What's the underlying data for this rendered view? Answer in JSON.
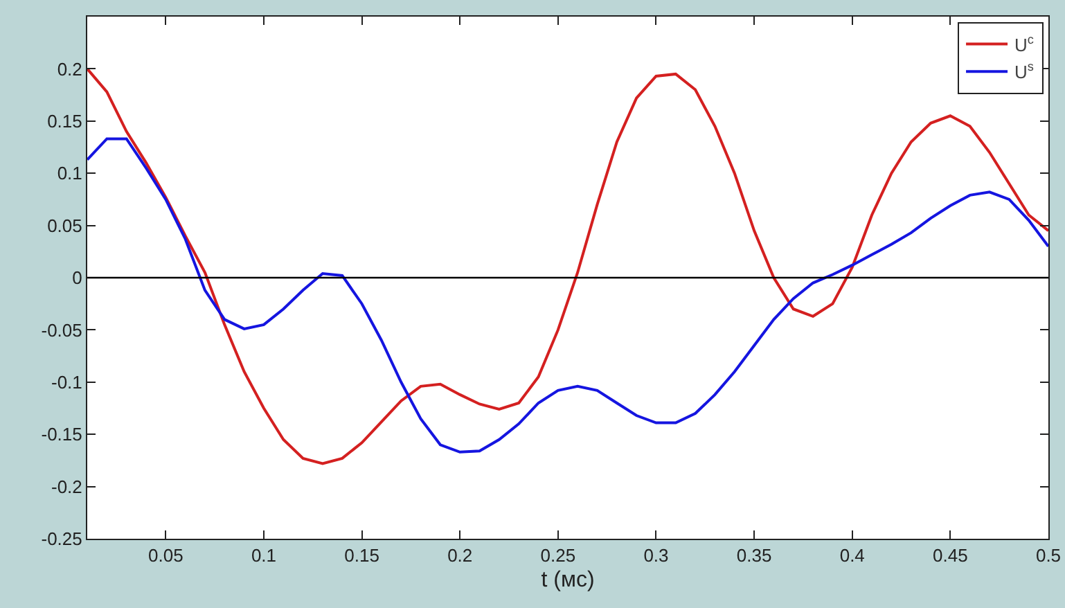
{
  "chart_data": {
    "type": "line",
    "xlabel": "t (мс)",
    "x": [
      0.01,
      0.02,
      0.03,
      0.04,
      0.05,
      0.06,
      0.07,
      0.08,
      0.09,
      0.1,
      0.11,
      0.12,
      0.13,
      0.14,
      0.15,
      0.16,
      0.17,
      0.18,
      0.19,
      0.2,
      0.21,
      0.22,
      0.23,
      0.24,
      0.25,
      0.26,
      0.27,
      0.28,
      0.29,
      0.3,
      0.31,
      0.32,
      0.33,
      0.34,
      0.35,
      0.36,
      0.37,
      0.38,
      0.39,
      0.4,
      0.41,
      0.42,
      0.43,
      0.44,
      0.45,
      0.46,
      0.47,
      0.48,
      0.49,
      0.5
    ],
    "series": [
      {
        "name": "U$^{c}$",
        "color": "#d42020",
        "values": [
          0.2,
          0.178,
          0.14,
          0.11,
          0.077,
          0.04,
          0.005,
          -0.045,
          -0.09,
          -0.125,
          -0.155,
          -0.173,
          -0.178,
          -0.173,
          -0.158,
          -0.138,
          -0.118,
          -0.104,
          -0.102,
          -0.112,
          -0.121,
          -0.126,
          -0.12,
          -0.095,
          -0.05,
          0.005,
          0.07,
          0.13,
          0.172,
          0.193,
          0.195,
          0.18,
          0.145,
          0.1,
          0.045,
          0.0,
          -0.03,
          -0.037,
          -0.025,
          0.01,
          0.06,
          0.1,
          0.13,
          0.148,
          0.155,
          0.145,
          0.12,
          0.09,
          0.06,
          0.045
        ]
      },
      {
        "name": "U$^{s}$",
        "color": "#1515e0",
        "values": [
          0.113,
          0.133,
          0.133,
          0.105,
          0.075,
          0.037,
          -0.012,
          -0.04,
          -0.049,
          -0.045,
          -0.03,
          -0.012,
          0.004,
          0.002,
          -0.025,
          -0.06,
          -0.1,
          -0.135,
          -0.16,
          -0.167,
          -0.166,
          -0.155,
          -0.14,
          -0.12,
          -0.108,
          -0.104,
          -0.108,
          -0.12,
          -0.132,
          -0.139,
          -0.139,
          -0.13,
          -0.112,
          -0.09,
          -0.065,
          -0.04,
          -0.02,
          -0.005,
          0.003,
          0.012,
          0.022,
          0.032,
          0.043,
          0.057,
          0.069,
          0.079,
          0.082,
          0.075,
          0.055,
          0.03
        ]
      }
    ],
    "xlim": [
      0.01,
      0.5
    ],
    "xticks": [
      0.05,
      0.1,
      0.15,
      0.2,
      0.25,
      0.3,
      0.35,
      0.4,
      0.45,
      0.5
    ],
    "ylim": [
      -0.25,
      0.25
    ],
    "yticks": [
      -0.25,
      -0.2,
      -0.15,
      -0.1,
      -0.05,
      0,
      0.05,
      0.1,
      0.15,
      0.2,
      {
        "value": 0.25,
        "label": null
      }
    ],
    "ref_lines": [
      {
        "axis": "y",
        "value": 0,
        "color": "#000000"
      }
    ],
    "grid": false,
    "legend": "top right",
    "marker": "none",
    "line_style": "solid"
  }
}
